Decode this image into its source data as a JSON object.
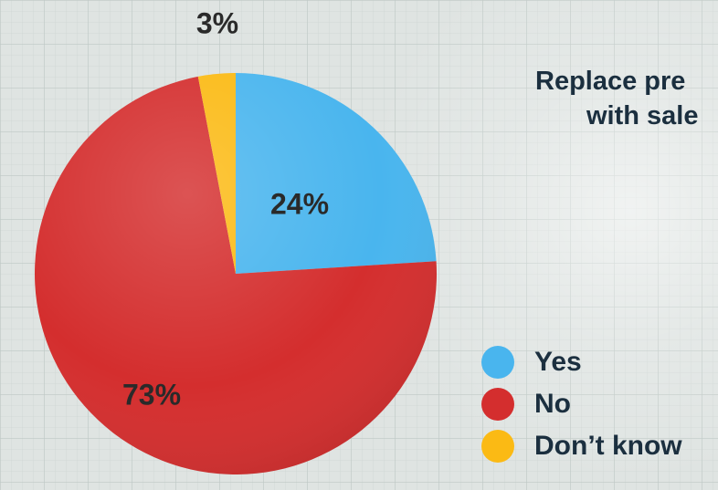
{
  "chart_data": {
    "type": "pie",
    "title_lines": [
      "Replace pre",
      "with sale"
    ],
    "slices": [
      {
        "label": "Yes",
        "value": 24,
        "display": "24%",
        "color": "#49b5ee"
      },
      {
        "label": "No",
        "value": 73,
        "display": "73%",
        "color": "#d42e2e"
      },
      {
        "label": "Don’t know",
        "value": 3,
        "display": "3%",
        "color": "#fbba14"
      }
    ],
    "legend_position": "bottom-right",
    "grid": true
  }
}
